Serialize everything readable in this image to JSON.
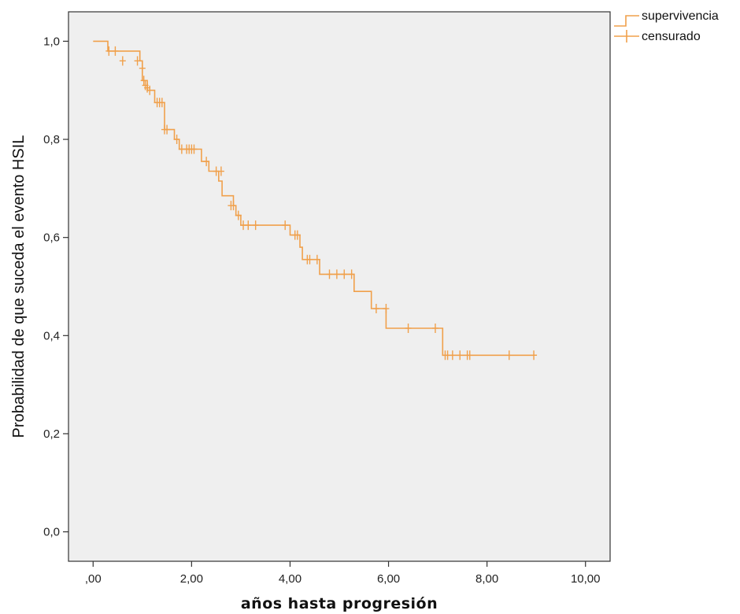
{
  "chart_data": {
    "type": "line",
    "subtype": "kaplan-meier step",
    "title": "",
    "xlabel": "años hasta progresión",
    "ylabel": "Probabilidad de que suceda el evento HSIL",
    "xlim": [
      -0.5,
      10.5
    ],
    "ylim": [
      -0.06,
      1.06
    ],
    "x_ticks": [
      0,
      2,
      4,
      6,
      8,
      10
    ],
    "x_tick_labels": [
      ",00",
      "2,00",
      "4,00",
      "6,00",
      "8,00",
      "10,00"
    ],
    "y_ticks": [
      0,
      0.2,
      0.4,
      0.6,
      0.8,
      1.0
    ],
    "y_tick_labels": [
      "0,0",
      "0,2",
      "0,4",
      "0,6",
      "0,8",
      "1,0"
    ],
    "grid": false,
    "legend_position": "top-right, outside plot",
    "colors": {
      "series": "#f0a04b",
      "plot_background": "#efefef",
      "axis": "#333333"
    },
    "series": [
      {
        "name": "supervivencia",
        "points": [
          [
            0,
            1.0
          ],
          [
            0.3,
            1.0
          ],
          [
            0.3,
            0.98
          ],
          [
            0.95,
            0.98
          ],
          [
            0.95,
            0.96
          ],
          [
            1.0,
            0.96
          ],
          [
            1.0,
            0.92
          ],
          [
            1.1,
            0.92
          ],
          [
            1.1,
            0.9
          ],
          [
            1.25,
            0.9
          ],
          [
            1.25,
            0.875
          ],
          [
            1.45,
            0.875
          ],
          [
            1.45,
            0.82
          ],
          [
            1.65,
            0.82
          ],
          [
            1.65,
            0.8
          ],
          [
            1.75,
            0.8
          ],
          [
            1.75,
            0.78
          ],
          [
            2.2,
            0.78
          ],
          [
            2.2,
            0.755
          ],
          [
            2.35,
            0.755
          ],
          [
            2.35,
            0.735
          ],
          [
            2.55,
            0.735
          ],
          [
            2.55,
            0.715
          ],
          [
            2.62,
            0.715
          ],
          [
            2.62,
            0.685
          ],
          [
            2.85,
            0.685
          ],
          [
            2.85,
            0.665
          ],
          [
            2.9,
            0.665
          ],
          [
            2.9,
            0.645
          ],
          [
            3.0,
            0.645
          ],
          [
            3.0,
            0.625
          ],
          [
            4.0,
            0.625
          ],
          [
            4.0,
            0.605
          ],
          [
            4.2,
            0.605
          ],
          [
            4.2,
            0.58
          ],
          [
            4.25,
            0.58
          ],
          [
            4.25,
            0.555
          ],
          [
            4.6,
            0.555
          ],
          [
            4.6,
            0.525
          ],
          [
            5.3,
            0.525
          ],
          [
            5.3,
            0.49
          ],
          [
            5.65,
            0.49
          ],
          [
            5.65,
            0.455
          ],
          [
            5.95,
            0.455
          ],
          [
            5.95,
            0.415
          ],
          [
            7.1,
            0.415
          ],
          [
            7.1,
            0.36
          ],
          [
            8.95,
            0.36
          ]
        ]
      },
      {
        "name": "censurado",
        "points": [
          [
            0.32,
            0.98
          ],
          [
            0.45,
            0.98
          ],
          [
            0.6,
            0.96
          ],
          [
            0.9,
            0.96
          ],
          [
            1.0,
            0.945
          ],
          [
            1.03,
            0.92
          ],
          [
            1.06,
            0.91
          ],
          [
            1.1,
            0.905
          ],
          [
            1.15,
            0.9
          ],
          [
            1.3,
            0.875
          ],
          [
            1.35,
            0.875
          ],
          [
            1.4,
            0.875
          ],
          [
            1.45,
            0.82
          ],
          [
            1.5,
            0.82
          ],
          [
            1.7,
            0.8
          ],
          [
            1.8,
            0.78
          ],
          [
            1.9,
            0.78
          ],
          [
            1.95,
            0.78
          ],
          [
            2.0,
            0.78
          ],
          [
            2.05,
            0.78
          ],
          [
            2.3,
            0.755
          ],
          [
            2.5,
            0.735
          ],
          [
            2.6,
            0.735
          ],
          [
            2.8,
            0.665
          ],
          [
            2.85,
            0.665
          ],
          [
            2.95,
            0.645
          ],
          [
            3.05,
            0.625
          ],
          [
            3.15,
            0.625
          ],
          [
            3.3,
            0.625
          ],
          [
            3.9,
            0.625
          ],
          [
            4.1,
            0.605
          ],
          [
            4.15,
            0.605
          ],
          [
            4.35,
            0.555
          ],
          [
            4.4,
            0.555
          ],
          [
            4.55,
            0.555
          ],
          [
            4.8,
            0.525
          ],
          [
            4.95,
            0.525
          ],
          [
            5.1,
            0.525
          ],
          [
            5.25,
            0.525
          ],
          [
            5.75,
            0.455
          ],
          [
            5.95,
            0.455
          ],
          [
            6.4,
            0.415
          ],
          [
            6.95,
            0.415
          ],
          [
            7.15,
            0.36
          ],
          [
            7.2,
            0.36
          ],
          [
            7.3,
            0.36
          ],
          [
            7.45,
            0.36
          ],
          [
            7.6,
            0.36
          ],
          [
            7.65,
            0.36
          ],
          [
            8.45,
            0.36
          ],
          [
            8.95,
            0.36
          ]
        ]
      }
    ]
  }
}
